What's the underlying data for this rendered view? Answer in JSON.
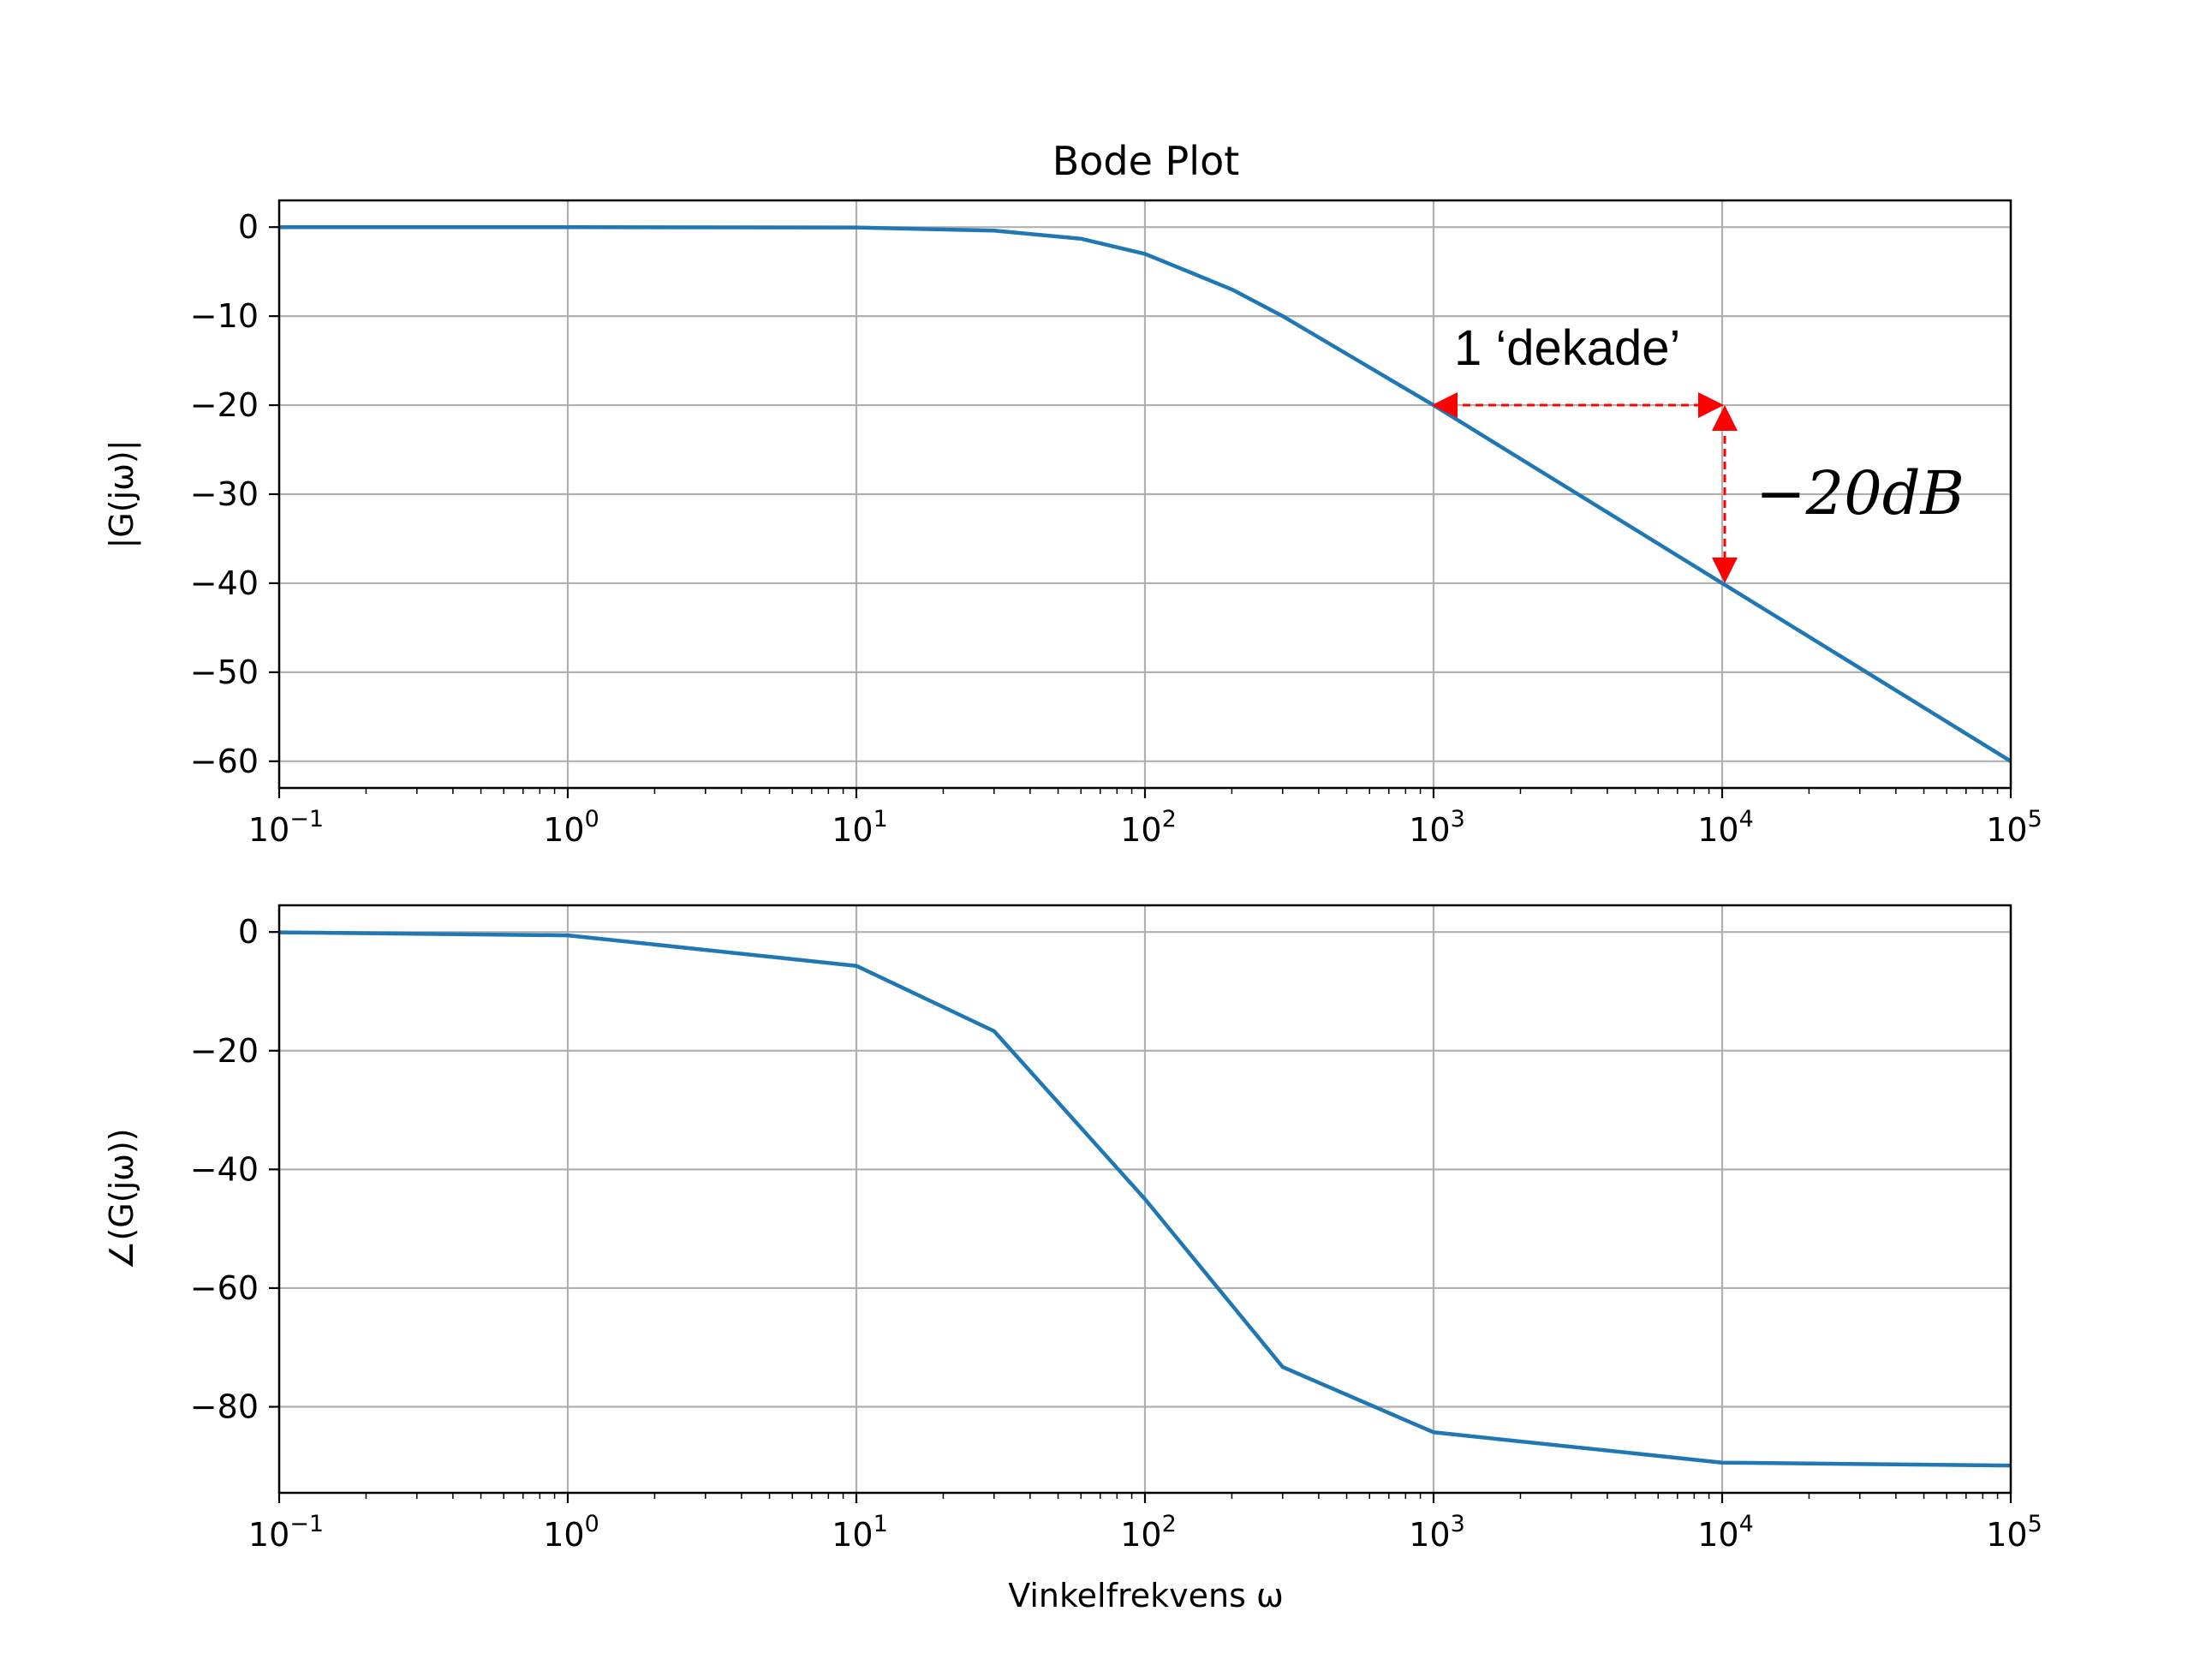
{
  "title": "Bode Plot",
  "chart_data": [
    {
      "type": "line",
      "panel": "magnitude",
      "x_scale": "log",
      "xlim": [
        0.1,
        100000
      ],
      "ylim": [
        -63,
        3
      ],
      "x_ticks": [
        {
          "base": "10",
          "exp": "−1",
          "value": 0.1
        },
        {
          "base": "10",
          "exp": "0",
          "value": 1
        },
        {
          "base": "10",
          "exp": "1",
          "value": 10
        },
        {
          "base": "10",
          "exp": "2",
          "value": 100
        },
        {
          "base": "10",
          "exp": "3",
          "value": 1000
        },
        {
          "base": "10",
          "exp": "4",
          "value": 10000
        },
        {
          "base": "10",
          "exp": "5",
          "value": 100000
        }
      ],
      "y_ticks": [
        {
          "label": "0",
          "value": 0
        },
        {
          "label": "−10",
          "value": -10
        },
        {
          "label": "−20",
          "value": -20
        },
        {
          "label": "−30",
          "value": -30
        },
        {
          "label": "−40",
          "value": -40
        },
        {
          "label": "−50",
          "value": -50
        },
        {
          "label": "−60",
          "value": -60
        }
      ],
      "ylabel": "|G(jω)|",
      "grid": true,
      "series": [
        {
          "color": "#1f77b4",
          "x": [
            0.1,
            1,
            10,
            30,
            60,
            100,
            200,
            300,
            1000,
            10000,
            100000
          ],
          "y": [
            0,
            0,
            -0.04,
            -0.4,
            -1.3,
            -3.0,
            -7.0,
            -10.0,
            -20.0,
            -40.0,
            -60.0
          ]
        }
      ],
      "annotations": [
        {
          "kind": "text",
          "text": "1 ‘dekade’"
        },
        {
          "kind": "math",
          "text": "−20dB"
        },
        {
          "kind": "arrow",
          "from": [
            1000,
            -20
          ],
          "to": [
            10000,
            -20
          ]
        },
        {
          "kind": "arrow",
          "from": [
            10000,
            -20
          ],
          "to": [
            10000,
            -40
          ]
        }
      ]
    },
    {
      "type": "line",
      "panel": "phase",
      "x_scale": "log",
      "xlim": [
        0.1,
        100000
      ],
      "ylim": [
        -94.5,
        4.5
      ],
      "x_ticks": [
        {
          "base": "10",
          "exp": "−1",
          "value": 0.1
        },
        {
          "base": "10",
          "exp": "0",
          "value": 1
        },
        {
          "base": "10",
          "exp": "1",
          "value": 10
        },
        {
          "base": "10",
          "exp": "2",
          "value": 100
        },
        {
          "base": "10",
          "exp": "3",
          "value": 1000
        },
        {
          "base": "10",
          "exp": "4",
          "value": 10000
        },
        {
          "base": "10",
          "exp": "5",
          "value": 100000
        }
      ],
      "y_ticks": [
        {
          "label": "0",
          "value": 0
        },
        {
          "label": "−20",
          "value": -20
        },
        {
          "label": "−40",
          "value": -40
        },
        {
          "label": "−60",
          "value": -60
        },
        {
          "label": "−80",
          "value": -80
        }
      ],
      "ylabel": "∠(G(jω))",
      "xlabel": "Vinkelfrekvens ω",
      "grid": true,
      "series": [
        {
          "color": "#1f77b4",
          "x": [
            0.1,
            1,
            10,
            30,
            100,
            300,
            1000,
            10000,
            100000
          ],
          "y": [
            -0.06,
            -0.57,
            -5.7,
            -16.7,
            -45.0,
            -73.3,
            -84.3,
            -89.4,
            -89.9
          ]
        }
      ]
    }
  ]
}
